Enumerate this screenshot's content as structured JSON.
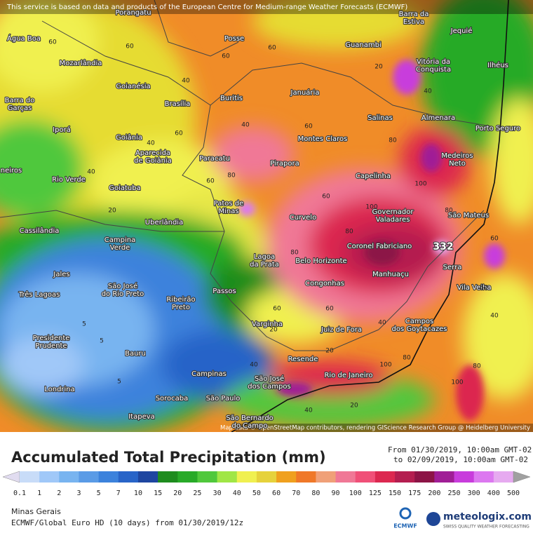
{
  "banner": "This service is based on data and products of the European Centre for Medium-range Weather Forecasts (ECMWF)",
  "attribution": "Map data © OpenStreetMap contributors, rendering GIScience Research Group @ Heidelberg University",
  "max_label": "332",
  "title": "Accumulated Total Precipitation (mm)",
  "period_from": "From 01/30/2019, 10:00am GMT-02",
  "period_to": "to 02/09/2019, 10:00am GMT-02",
  "legend": {
    "stops": [
      0.1,
      1,
      2,
      3,
      5,
      7,
      10,
      15,
      20,
      25,
      30,
      40,
      50,
      60,
      70,
      80,
      90,
      100,
      125,
      150,
      175,
      200,
      250,
      300,
      400,
      500
    ],
    "colors": [
      "#e1dcf0",
      "#c8dcf8",
      "#a0c8f8",
      "#78b4f0",
      "#5a9be6",
      "#3c82dc",
      "#2864c8",
      "#1e46a0",
      "#1e8c1e",
      "#28aa28",
      "#50c83c",
      "#a0e646",
      "#f0f050",
      "#e6d23c",
      "#f0a01e",
      "#f07828",
      "#f0a078",
      "#f07896",
      "#f05078",
      "#dc2850",
      "#b41e50",
      "#8c1446",
      "#a01e96",
      "#c83cdc",
      "#dc78f0",
      "#e6aaf0",
      "#f0dcf8",
      "#d2d2d2",
      "#a0a0a0"
    ]
  },
  "region": "Minas Gerais",
  "model": "ECMWF/Global Euro HD (10 days) from 01/30/2019/12z",
  "logos": {
    "ecmwf": "ECMWF",
    "brand": "meteologix.com",
    "tagline": "SWISS QUALITY WEATHER FORECASTING"
  },
  "cities": [
    [
      "Porangatu"
    ],
    [
      "Barra da",
      "Estiva"
    ],
    [
      "Jequié"
    ],
    [
      "Água Boa"
    ],
    [
      "Posse"
    ],
    [
      "Guanambi"
    ],
    [
      "Vitória da",
      "Conquista"
    ],
    [
      "Ilhéus"
    ],
    [
      "Mozarlândia"
    ],
    [
      "Goianésia"
    ],
    [
      "Januária"
    ],
    [
      "Buritis"
    ],
    [
      "Brasília"
    ],
    [
      "Barra do",
      "Garças"
    ],
    [
      "Salinas"
    ],
    [
      "Almenara"
    ],
    [
      "Iporá"
    ],
    [
      "Goiânia"
    ],
    [
      "Porto Seguro"
    ],
    [
      "Montes Claros"
    ],
    [
      "Aparecida",
      "de Goiânia"
    ],
    [
      "Paracatu"
    ],
    [
      "Pirapora"
    ],
    [
      "Medeiros",
      "Neto"
    ],
    [
      "Capelinha"
    ],
    [
      "Rio Verde"
    ],
    [
      "Goiatuba"
    ],
    [
      "Patos de",
      "Minas"
    ],
    [
      "Governador",
      "Valadares"
    ],
    [
      "São Mateus"
    ],
    [
      "Curvelo"
    ],
    [
      "Uberlândia"
    ],
    [
      "Cassilândia"
    ],
    [
      "Campina",
      "Verde"
    ],
    [
      "Coronel Fabriciano"
    ],
    [
      "Lagoa",
      "da Prata"
    ],
    [
      "Belo Horizonte"
    ],
    [
      "Serra"
    ],
    [
      "Jales"
    ],
    [
      "Manhuaçu"
    ],
    [
      "Vila Velha"
    ],
    [
      "Congonhas"
    ],
    [
      "São José",
      "do Rio Preto"
    ],
    [
      "Três Lagoas"
    ],
    [
      "Passos"
    ],
    [
      "Ribeirão",
      "Preto"
    ],
    [
      "Campos",
      "dos Goytacazes"
    ],
    [
      "Varginha"
    ],
    [
      "Juiz de Fora"
    ],
    [
      "Presidente",
      "Prudente"
    ],
    [
      "Bauru"
    ],
    [
      "Resende"
    ],
    [
      "Campinas"
    ],
    [
      "São José",
      "dos Campos"
    ],
    [
      "Rio de Janeiro"
    ],
    [
      "Londrina"
    ],
    [
      "Sorocaba"
    ],
    [
      "São Paulo"
    ],
    [
      "Itapeva"
    ],
    [
      "São Bernardo",
      "do Campo"
    ],
    [
      "neiros"
    ]
  ],
  "contour_labels": [
    "60",
    "60",
    "60",
    "40",
    "60",
    "60",
    "40",
    "20",
    "40",
    "60",
    "80",
    "60",
    "40",
    "60",
    "40",
    "20",
    "80",
    "100",
    "80",
    "80",
    "60",
    "40",
    "20",
    "5",
    "5",
    "5",
    "20",
    "40",
    "60",
    "80",
    "100",
    "100",
    "80",
    "60",
    "40",
    "20",
    "60",
    "80",
    "100",
    "40"
  ]
}
